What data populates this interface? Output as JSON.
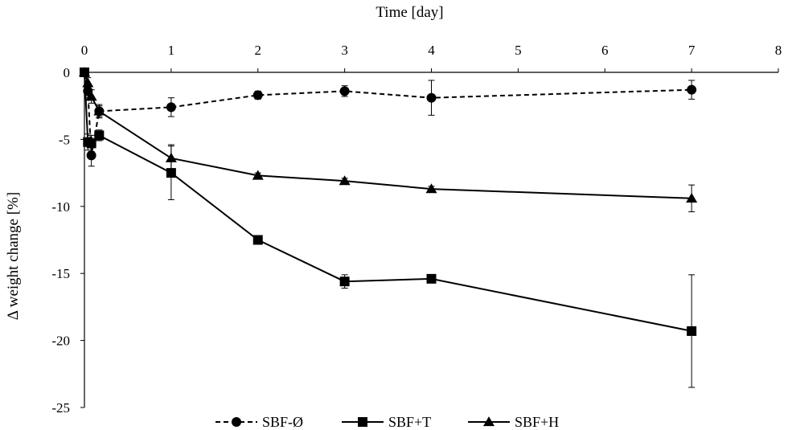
{
  "chart_data": {
    "type": "line",
    "title": "",
    "xlabel": "Time [day]",
    "ylabel": "Δ weight change [%]",
    "xlim": [
      0,
      8
    ],
    "ylim": [
      -25,
      0
    ],
    "x_ticks": [
      "0",
      "1",
      "2",
      "3",
      "4",
      "5",
      "6",
      "7",
      "8"
    ],
    "y_ticks": [
      "0",
      "-5",
      "-10",
      "-15",
      "-20",
      "-25"
    ],
    "x_axis_position": "top",
    "grid": false,
    "legend_position": "bottom",
    "series": [
      {
        "name": "SBF-Ø",
        "marker": "circle",
        "line_style": "dashed",
        "color": "#000000",
        "points": [
          {
            "x": 0,
            "y": 0,
            "err": 0
          },
          {
            "x": 0.04,
            "y": -1.4,
            "err": 0.5
          },
          {
            "x": 0.08,
            "y": -6.2,
            "err": 0.8
          },
          {
            "x": 0.17,
            "y": -2.9,
            "err": 0.5
          },
          {
            "x": 1,
            "y": -2.6,
            "err": 0.7
          },
          {
            "x": 2,
            "y": -1.7,
            "err": 0.3
          },
          {
            "x": 3,
            "y": -1.4,
            "err": 0.4
          },
          {
            "x": 4,
            "y": -1.9,
            "err": 1.3
          },
          {
            "x": 7,
            "y": -1.3,
            "err": 0.7
          }
        ]
      },
      {
        "name": "SBF+T",
        "marker": "square",
        "line_style": "solid",
        "color": "#000000",
        "points": [
          {
            "x": 0,
            "y": 0,
            "err": 0
          },
          {
            "x": 0.04,
            "y": -5.2,
            "err": 0.6
          },
          {
            "x": 0.08,
            "y": -5.3,
            "err": 0.6
          },
          {
            "x": 0.17,
            "y": -4.7,
            "err": 0.4
          },
          {
            "x": 1,
            "y": -7.5,
            "err": 2.0
          },
          {
            "x": 2,
            "y": -12.5,
            "err": 0.3
          },
          {
            "x": 3,
            "y": -15.6,
            "err": 0.5
          },
          {
            "x": 4,
            "y": -15.4,
            "err": 0.3
          },
          {
            "x": 7,
            "y": -19.3,
            "err": 4.2
          }
        ]
      },
      {
        "name": "SBF+H",
        "marker": "triangle",
        "line_style": "solid",
        "color": "#000000",
        "points": [
          {
            "x": 0,
            "y": 0,
            "err": 0
          },
          {
            "x": 0.04,
            "y": -0.8,
            "err": 0.4
          },
          {
            "x": 0.08,
            "y": -1.8,
            "err": 0.5
          },
          {
            "x": 0.17,
            "y": -2.9,
            "err": 0.4
          },
          {
            "x": 1,
            "y": -6.4,
            "err": 1.0
          },
          {
            "x": 2,
            "y": -7.7,
            "err": 0.2
          },
          {
            "x": 3,
            "y": -8.1,
            "err": 0.2
          },
          {
            "x": 4,
            "y": -8.7,
            "err": 0.2
          },
          {
            "x": 7,
            "y": -9.4,
            "err": 1.0
          }
        ]
      }
    ]
  }
}
